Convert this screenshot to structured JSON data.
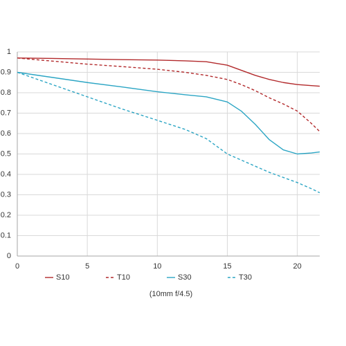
{
  "chart_data": {
    "type": "line",
    "annotation": "(10mm f/4.5)",
    "x": [
      0,
      2.5,
      5,
      7.5,
      10,
      12,
      13.5,
      15,
      16,
      17,
      18,
      19,
      20,
      21,
      21.6
    ],
    "series": [
      {
        "name": "S10",
        "color": "#b2292b",
        "dashed": false,
        "values": [
          0.97,
          0.968,
          0.965,
          0.962,
          0.96,
          0.956,
          0.952,
          0.935,
          0.91,
          0.885,
          0.865,
          0.85,
          0.84,
          0.835,
          0.832
        ]
      },
      {
        "name": "T10",
        "color": "#b2292b",
        "dashed": true,
        "values": [
          0.97,
          0.955,
          0.94,
          0.928,
          0.915,
          0.9,
          0.885,
          0.865,
          0.84,
          0.81,
          0.775,
          0.745,
          0.71,
          0.65,
          0.61
        ]
      },
      {
        "name": "S30",
        "color": "#2ba5c4",
        "dashed": false,
        "values": [
          0.9,
          0.875,
          0.85,
          0.828,
          0.805,
          0.79,
          0.78,
          0.755,
          0.71,
          0.645,
          0.57,
          0.52,
          0.5,
          0.505,
          0.51
        ]
      },
      {
        "name": "T30",
        "color": "#2ba5c4",
        "dashed": true,
        "values": [
          0.9,
          0.84,
          0.78,
          0.72,
          0.665,
          0.62,
          0.575,
          0.5,
          0.47,
          0.44,
          0.41,
          0.385,
          0.36,
          0.33,
          0.31
        ]
      }
    ],
    "xlim": [
      0,
      21.6
    ],
    "xticks": [
      0,
      5,
      10,
      15,
      20
    ],
    "ylim": [
      0,
      1
    ],
    "yticks": [
      0,
      0.1,
      0.2,
      0.3,
      0.4,
      0.5,
      0.6,
      0.7,
      0.8,
      0.9,
      1
    ],
    "grid": true
  }
}
